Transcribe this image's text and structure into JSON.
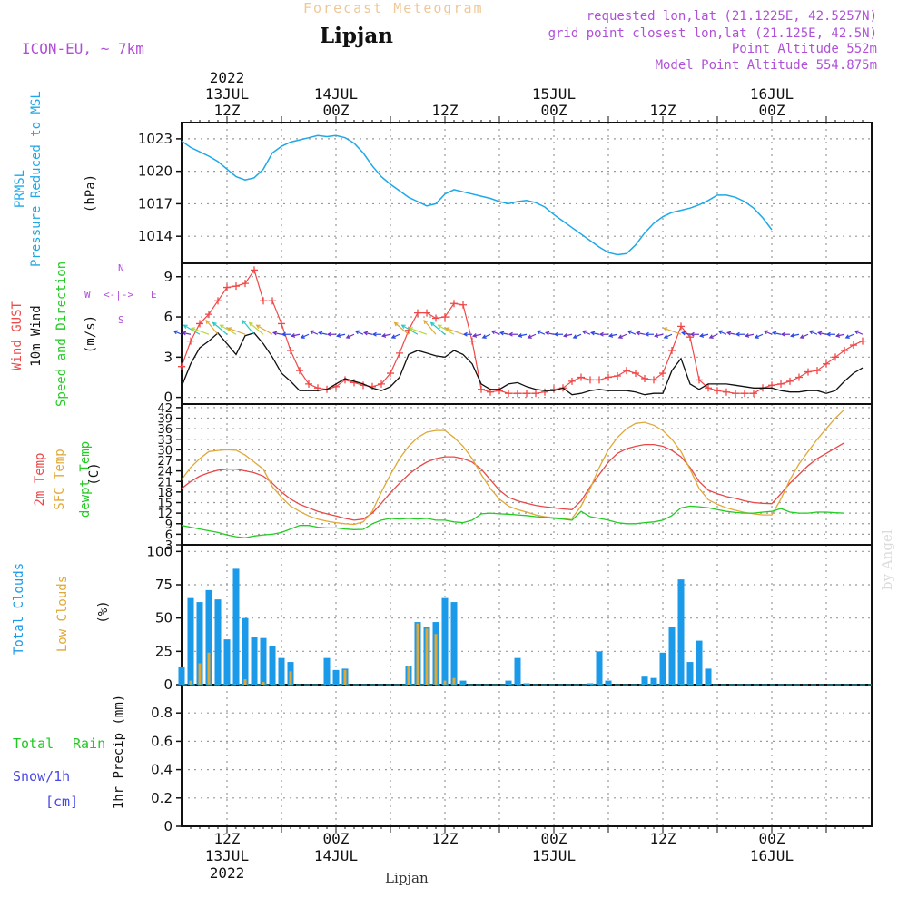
{
  "header": {
    "forecast_title": "Forecast Meteogram",
    "location": "Lipjan",
    "model": "ICON-EU, ~ 7km",
    "requested": "requested lon,lat (21.1225E, 42.5257N)",
    "grid_point": "grid point closest lon,lat (21.125E, 42.5N)",
    "point_altitude": "Point Altitude 552m",
    "model_altitude": "Model Point Altitude 554.875m",
    "byline": "by Angel",
    "footer": "Lipjan"
  },
  "colors": {
    "pressure": "#1ea8e8",
    "gust": "#f04848",
    "wind": "#101010",
    "t2m": "#e84848",
    "sfc": "#e0a838",
    "dewpt": "#22cc22",
    "total_cloud": "#1a9ae8",
    "low_cloud": "#e0a838",
    "rain": "#22c822",
    "snow": "#4848e8",
    "purple": "#b050d8"
  },
  "panel_labels": {
    "pressure": [
      "PRMSL",
      "Pressure Reduced to MSL"
    ],
    "pressure_unit": "(hPa)",
    "wind": [
      "Wind GUST",
      "10m Wind",
      "Speed and Direction"
    ],
    "wind_unit": "(m/s)",
    "compass": {
      "n": "N",
      "s": "S",
      "w": "W",
      "e": "E",
      "arrows": "<-|->"
    },
    "temp": [
      "2m Temp",
      "SFC Temp",
      "dewpt Temp"
    ],
    "temp_unit": "(C)",
    "cloud": [
      "Total Clouds",
      "Low Clouds"
    ],
    "cloud_unit": "(%)",
    "precip": [
      "Total",
      "Rain",
      "Snow/1h",
      "[cm]"
    ],
    "precip_unit": "1hr Precip (mm)"
  },
  "time_axis": {
    "top_labels": [
      {
        "hour": 12,
        "lines": [
          "2022",
          "13JUL",
          "12Z"
        ]
      },
      {
        "hour": 24,
        "lines": [
          "14JUL",
          "00Z"
        ]
      },
      {
        "hour": 36,
        "lines": [
          "12Z"
        ]
      },
      {
        "hour": 48,
        "lines": [
          "15JUL",
          "00Z"
        ]
      },
      {
        "hour": 60,
        "lines": [
          "12Z"
        ]
      },
      {
        "hour": 72,
        "lines": [
          "16JUL",
          "00Z"
        ]
      }
    ],
    "bottom_labels": [
      {
        "hour": 12,
        "lines": [
          "12Z",
          "13JUL",
          "2022"
        ]
      },
      {
        "hour": 24,
        "lines": [
          "00Z",
          "14JUL"
        ]
      },
      {
        "hour": 36,
        "lines": [
          "12Z"
        ]
      },
      {
        "hour": 48,
        "lines": [
          "00Z",
          "15JUL"
        ]
      },
      {
        "hour": 60,
        "lines": [
          "12Z"
        ]
      },
      {
        "hour": 72,
        "lines": [
          "00Z",
          "16JUL"
        ]
      }
    ]
  },
  "chart_data": [
    {
      "type": "line",
      "title": "PRMSL Pressure Reduced to MSL",
      "ylabel": "(hPa)",
      "ylim": [
        1011.5,
        1024.5
      ],
      "yticks": [
        1014,
        1017,
        1020,
        1023
      ],
      "xlim_hours": [
        7,
        83
      ],
      "x_hours": [
        7,
        8,
        9,
        10,
        11,
        12,
        13,
        14,
        15,
        16,
        17,
        18,
        19,
        20,
        21,
        22,
        23,
        24,
        25,
        26,
        27,
        28,
        29,
        30,
        31,
        32,
        33,
        34,
        35,
        36,
        37,
        38,
        39,
        40,
        41,
        42,
        43,
        44,
        45,
        46,
        47,
        48,
        49,
        50,
        51,
        52,
        53,
        54,
        55,
        56,
        57,
        58,
        59,
        60,
        61,
        62,
        63,
        64,
        65,
        66,
        67,
        68,
        69,
        70,
        71,
        72,
        73,
        74,
        75,
        76,
        77,
        78,
        79,
        80,
        81,
        82
      ],
      "series": [
        {
          "name": "PRMSL",
          "values": [
            1022.8,
            1022.2,
            1021.8,
            1021.4,
            1020.9,
            1020.2,
            1019.5,
            1019.2,
            1019.4,
            1020.2,
            1021.7,
            1022.3,
            1022.7,
            1022.9,
            1023.1,
            1023.3,
            1023.2,
            1023.3,
            1023.1,
            1022.6,
            1021.7,
            1020.5,
            1019.5,
            1018.8,
            1018.2,
            1017.6,
            1017.2,
            1016.8,
            1017.0,
            1017.9,
            1018.3,
            1018.1,
            1017.9,
            1017.7,
            1017.5,
            1017.2,
            1017.0,
            1017.2,
            1017.3,
            1017.1,
            1016.7,
            1016.0,
            1015.4,
            1014.8,
            1014.2,
            1013.6,
            1013.0,
            1012.5,
            1012.3,
            1012.4,
            1013.2,
            1014.3,
            1015.2,
            1015.8,
            1016.2,
            1016.4,
            1016.6,
            1016.9,
            1017.3,
            1017.8,
            1017.8,
            1017.6,
            1017.2,
            1016.6,
            1015.7,
            1014.6
          ]
        }
      ]
    },
    {
      "type": "line",
      "title": "Wind GUST / 10m Wind Speed and Direction",
      "ylabel": "(m/s)",
      "ylim": [
        -0.5,
        10
      ],
      "yticks": [
        0,
        3,
        6,
        9
      ],
      "xlim_hours": [
        7,
        83
      ],
      "x_hours": [
        7,
        8,
        9,
        10,
        11,
        12,
        13,
        14,
        15,
        16,
        17,
        18,
        19,
        20,
        21,
        22,
        23,
        24,
        25,
        26,
        27,
        28,
        29,
        30,
        31,
        32,
        33,
        34,
        35,
        36,
        37,
        38,
        39,
        40,
        41,
        42,
        43,
        44,
        45,
        46,
        47,
        48,
        49,
        50,
        51,
        52,
        53,
        54,
        55,
        56,
        57,
        58,
        59,
        60,
        61,
        62,
        63,
        64,
        65,
        66,
        67,
        68,
        69,
        70,
        71,
        72,
        73,
        74,
        75,
        76,
        77,
        78,
        79,
        80,
        81,
        82
      ],
      "series": [
        {
          "name": "Wind GUST",
          "values": [
            2.3,
            4.2,
            5.5,
            6.2,
            7.2,
            8.2,
            8.3,
            8.5,
            9.5,
            7.2,
            7.2,
            5.5,
            3.5,
            2.0,
            1.0,
            0.7,
            0.6,
            0.8,
            1.3,
            1.1,
            0.9,
            0.8,
            1.0,
            1.8,
            3.3,
            5.0,
            6.3,
            6.3,
            5.9,
            6.0,
            7.0,
            6.9,
            4.2,
            0.6,
            0.4,
            0.5,
            0.3,
            0.3,
            0.3,
            0.3,
            0.4,
            0.6,
            0.7,
            1.2,
            1.5,
            1.3,
            1.3,
            1.5,
            1.6,
            2.0,
            1.8,
            1.4,
            1.3,
            1.8,
            3.5,
            5.3,
            4.5,
            1.3,
            0.7,
            0.5,
            0.4,
            0.3,
            0.3,
            0.3,
            0.7,
            0.9,
            1.0,
            1.2,
            1.5,
            1.9,
            2.0,
            2.5,
            3.0,
            3.5,
            3.9,
            4.2
          ]
        },
        {
          "name": "10m Wind",
          "values": [
            0.8,
            2.5,
            3.7,
            4.2,
            4.8,
            4.0,
            3.2,
            4.6,
            4.8,
            4.0,
            3.0,
            1.8,
            1.2,
            0.5,
            0.5,
            0.5,
            0.6,
            1.0,
            1.4,
            1.2,
            1.0,
            0.7,
            0.5,
            0.8,
            1.5,
            3.2,
            3.5,
            3.3,
            3.1,
            3.0,
            3.5,
            3.2,
            2.5,
            1.0,
            0.6,
            0.6,
            1.0,
            1.1,
            0.8,
            0.6,
            0.5,
            0.5,
            0.7,
            0.2,
            0.3,
            0.5,
            0.6,
            0.5,
            0.5,
            0.5,
            0.4,
            0.2,
            0.3,
            0.3,
            2.0,
            2.9,
            1.0,
            0.6,
            1.0,
            1.0,
            1.0,
            0.9,
            0.8,
            0.7,
            0.7,
            0.7,
            0.5,
            0.4,
            0.4,
            0.5,
            0.5,
            0.3,
            0.5,
            1.2,
            1.8,
            2.2
          ]
        }
      ]
    },
    {
      "type": "line",
      "title": "2m Temp / SFC Temp / dewpt Temp",
      "ylabel": "(C)",
      "ylim": [
        3,
        43
      ],
      "yticks": [
        3,
        6,
        9,
        12,
        15,
        18,
        21,
        24,
        27,
        30,
        33,
        36,
        39,
        42
      ],
      "xlim_hours": [
        7,
        83
      ],
      "x_hours": [
        7,
        8,
        9,
        10,
        11,
        12,
        13,
        14,
        15,
        16,
        17,
        18,
        19,
        20,
        21,
        22,
        23,
        24,
        25,
        26,
        27,
        28,
        29,
        30,
        31,
        32,
        33,
        34,
        35,
        36,
        37,
        38,
        39,
        40,
        41,
        42,
        43,
        44,
        45,
        46,
        47,
        48,
        49,
        50,
        51,
        52,
        53,
        54,
        55,
        56,
        57,
        58,
        59,
        60,
        61,
        62,
        63,
        64,
        65,
        66,
        67,
        68,
        69,
        70,
        71,
        72,
        73,
        74,
        75,
        76,
        77,
        78,
        79,
        80,
        81,
        82
      ],
      "series": [
        {
          "name": "2m Temp",
          "values": [
            19.0,
            21.0,
            22.5,
            23.5,
            24.2,
            24.5,
            24.5,
            24.0,
            23.5,
            22.5,
            20.5,
            18.0,
            16.0,
            14.5,
            13.5,
            12.5,
            11.8,
            11.2,
            10.5,
            10.0,
            10.3,
            12.0,
            14.8,
            17.8,
            20.5,
            23.0,
            25.0,
            26.5,
            27.5,
            28.0,
            28.0,
            27.5,
            26.5,
            24.5,
            21.5,
            18.5,
            16.5,
            15.5,
            14.8,
            14.2,
            13.8,
            13.5,
            13.2,
            13.0,
            15.5,
            19.5,
            23.0,
            26.5,
            29.0,
            30.3,
            31.0,
            31.5,
            31.5,
            31.0,
            29.8,
            28.0,
            25.0,
            21.0,
            18.5,
            17.5,
            16.7,
            16.2,
            15.5,
            15.0,
            14.8,
            14.7,
            17.5,
            20.5,
            23.0,
            25.5,
            27.5,
            29.0,
            30.5,
            32.0
          ]
        },
        {
          "name": "SFC Temp",
          "values": [
            21.5,
            25.0,
            27.5,
            29.5,
            29.8,
            30.0,
            29.9,
            28.5,
            26.5,
            24.5,
            19.5,
            16.5,
            14.0,
            12.5,
            11.2,
            10.3,
            9.7,
            9.3,
            9.0,
            8.8,
            9.5,
            12.5,
            18.0,
            23.0,
            27.5,
            31.0,
            33.5,
            35.0,
            35.5,
            35.5,
            33.5,
            31.0,
            27.5,
            23.0,
            19.0,
            16.0,
            14.0,
            13.0,
            12.3,
            11.5,
            11.0,
            10.7,
            10.5,
            10.5,
            14.0,
            19.0,
            25.0,
            30.0,
            33.5,
            36.0,
            37.5,
            37.8,
            37.0,
            35.5,
            33.0,
            29.5,
            24.5,
            19.0,
            15.8,
            14.5,
            13.5,
            12.8,
            12.2,
            11.8,
            11.5,
            11.5,
            16.0,
            21.5,
            26.0,
            29.5,
            33.0,
            36.0,
            39.0,
            41.5
          ]
        },
        {
          "name": "dewpt Temp",
          "values": [
            8.5,
            8.0,
            7.5,
            7.0,
            6.5,
            5.8,
            5.3,
            5.0,
            5.5,
            5.8,
            6.0,
            6.5,
            7.5,
            8.5,
            8.5,
            8.0,
            7.8,
            7.8,
            7.5,
            7.3,
            7.4,
            9.0,
            10.0,
            10.5,
            10.3,
            10.5,
            10.3,
            10.5,
            10.0,
            10.0,
            9.5,
            9.3,
            10.0,
            11.8,
            12.0,
            11.8,
            11.7,
            11.5,
            11.3,
            11.0,
            10.8,
            10.5,
            10.3,
            10.0,
            12.5,
            11.0,
            10.5,
            10.0,
            9.3,
            9.0,
            9.0,
            9.3,
            9.5,
            10.0,
            11.3,
            13.5,
            14.0,
            13.8,
            13.5,
            13.0,
            12.5,
            12.2,
            12.0,
            12.0,
            12.3,
            12.5,
            13.3,
            12.3,
            12.0,
            12.0,
            12.3,
            12.3,
            12.1,
            12.0
          ]
        }
      ]
    },
    {
      "type": "bar",
      "title": "Total Clouds / Low Clouds",
      "ylabel": "(%)",
      "ylim": [
        0,
        105
      ],
      "yticks": [
        0,
        25,
        50,
        75,
        100
      ],
      "xlim_hours": [
        7,
        83
      ],
      "x_hours": [
        7,
        8,
        9,
        10,
        11,
        12,
        13,
        14,
        15,
        16,
        17,
        18,
        19,
        20,
        21,
        22,
        23,
        24,
        25,
        26,
        27,
        28,
        29,
        30,
        31,
        32,
        33,
        34,
        35,
        36,
        37,
        38,
        39,
        40,
        41,
        42,
        43,
        44,
        45,
        46,
        47,
        48,
        49,
        50,
        51,
        52,
        53,
        54,
        55,
        56,
        57,
        58,
        59,
        60,
        61,
        62,
        63,
        64,
        65,
        66,
        67,
        68,
        69,
        70,
        71,
        72,
        73,
        74,
        75,
        76,
        77,
        78,
        79,
        80,
        81,
        82
      ],
      "series": [
        {
          "name": "Total Clouds",
          "values": [
            13,
            65,
            62,
            71,
            64,
            34,
            87,
            50,
            36,
            35,
            29,
            20,
            17,
            0,
            0,
            0,
            20,
            11,
            12,
            0,
            0,
            0,
            0,
            0,
            0,
            14,
            47,
            43,
            47,
            65,
            62,
            3,
            0,
            0,
            0,
            0,
            3,
            20,
            1,
            0,
            0,
            0,
            0,
            0,
            0,
            1,
            25,
            3,
            0,
            0,
            0,
            6,
            5,
            24,
            43,
            79,
            17,
            33,
            12,
            0,
            0,
            0,
            0,
            0,
            0,
            0,
            0,
            0,
            0,
            0,
            0,
            0,
            0,
            0,
            0,
            0
          ]
        },
        {
          "name": "Low Clouds",
          "values": [
            0,
            3,
            16,
            24,
            0,
            0,
            0,
            4,
            0,
            2,
            0,
            0,
            10,
            0,
            0,
            0,
            0,
            0,
            11,
            0,
            0,
            0,
            0,
            0,
            0,
            14,
            46,
            42,
            38,
            3,
            5,
            0,
            0,
            0,
            0,
            0,
            0,
            0,
            0,
            0,
            0,
            0,
            0,
            0,
            0,
            0,
            0,
            0,
            0,
            0,
            0,
            0,
            0,
            0,
            0,
            0,
            0,
            0,
            0,
            0,
            0,
            0,
            0,
            0,
            0,
            0,
            0,
            0,
            0,
            0,
            0,
            0,
            0,
            0,
            0,
            0
          ]
        }
      ]
    },
    {
      "type": "bar",
      "title": "1hr Precip",
      "ylabel": "1hr Precip (mm)",
      "ylim": [
        0,
        1.0
      ],
      "yticks": [
        0,
        0.2,
        0.4,
        0.6,
        0.8
      ],
      "ytick_labels": [
        "0",
        "0.2",
        "0.4",
        "0.6",
        "0.8"
      ],
      "xlim_hours": [
        7,
        83
      ],
      "series": [
        {
          "name": "Total Rain",
          "values": []
        },
        {
          "name": "Snow/1h",
          "values": []
        }
      ]
    }
  ]
}
